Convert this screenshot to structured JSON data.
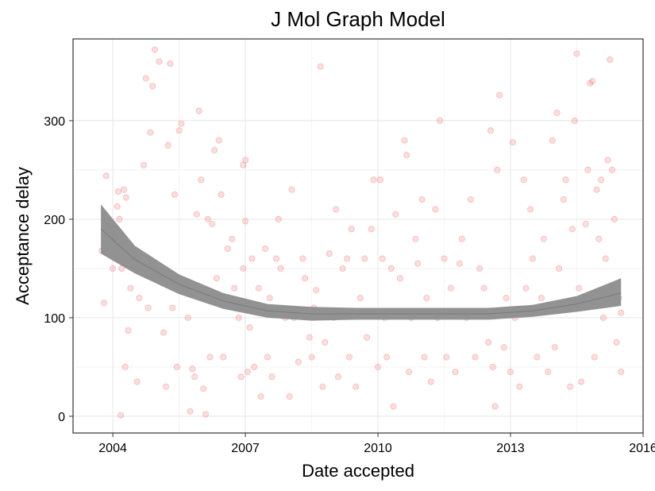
{
  "chart_data": {
    "type": "scatter",
    "title": "J Mol Graph Model",
    "xlabel": "Date accepted",
    "ylabel": "Acceptance delay",
    "xlim": [
      2003.1,
      2016.0
    ],
    "ylim": [
      -17,
      383
    ],
    "x_ticks": [
      2004,
      2007,
      2010,
      2013,
      2016
    ],
    "x_tick_labels": [
      "2004",
      "2007",
      "2010",
      "2013",
      "2016"
    ],
    "y_ticks": [
      0,
      100,
      200,
      300
    ],
    "y_tick_labels": [
      "0",
      "100",
      "200",
      "300"
    ],
    "grid": true,
    "legend": "none",
    "point_color": "#f08080",
    "point_fill_opacity": 0.25,
    "smooth_color": "#8c8c8c",
    "points": [
      [
        2003.75,
        168
      ],
      [
        2003.8,
        115
      ],
      [
        2003.85,
        244
      ],
      [
        2003.95,
        192
      ],
      [
        2004.0,
        150
      ],
      [
        2004.05,
        182
      ],
      [
        2004.1,
        213
      ],
      [
        2004.12,
        228
      ],
      [
        2004.15,
        200
      ],
      [
        2004.18,
        1
      ],
      [
        2004.2,
        150
      ],
      [
        2004.25,
        230
      ],
      [
        2004.28,
        50
      ],
      [
        2004.3,
        222
      ],
      [
        2004.35,
        87
      ],
      [
        2004.4,
        130
      ],
      [
        2004.45,
        170
      ],
      [
        2004.5,
        160
      ],
      [
        2004.55,
        35
      ],
      [
        2004.6,
        120
      ],
      [
        2004.7,
        255
      ],
      [
        2004.75,
        343
      ],
      [
        2004.8,
        110
      ],
      [
        2004.85,
        288
      ],
      [
        2004.9,
        335
      ],
      [
        2004.95,
        372
      ],
      [
        2005.0,
        145
      ],
      [
        2005.05,
        360
      ],
      [
        2005.1,
        140
      ],
      [
        2005.15,
        85
      ],
      [
        2005.2,
        30
      ],
      [
        2005.25,
        275
      ],
      [
        2005.3,
        358
      ],
      [
        2005.35,
        110
      ],
      [
        2005.4,
        225
      ],
      [
        2005.45,
        50
      ],
      [
        2005.5,
        290
      ],
      [
        2005.55,
        297
      ],
      [
        2005.6,
        130
      ],
      [
        2005.7,
        100
      ],
      [
        2005.75,
        5
      ],
      [
        2005.8,
        48
      ],
      [
        2005.85,
        40
      ],
      [
        2005.9,
        205
      ],
      [
        2005.95,
        310
      ],
      [
        2006.0,
        240
      ],
      [
        2006.05,
        28
      ],
      [
        2006.1,
        2
      ],
      [
        2006.15,
        200
      ],
      [
        2006.2,
        60
      ],
      [
        2006.25,
        195
      ],
      [
        2006.3,
        270
      ],
      [
        2006.35,
        140
      ],
      [
        2006.4,
        280
      ],
      [
        2006.45,
        225
      ],
      [
        2006.5,
        60
      ],
      [
        2006.6,
        170
      ],
      [
        2006.7,
        180
      ],
      [
        2006.75,
        130
      ],
      [
        2006.85,
        100
      ],
      [
        2006.9,
        40
      ],
      [
        2006.95,
        150
      ],
      [
        2007.0,
        198
      ],
      [
        2006.95,
        255
      ],
      [
        2007.0,
        260
      ],
      [
        2007.05,
        45
      ],
      [
        2007.1,
        90
      ],
      [
        2007.15,
        160
      ],
      [
        2007.2,
        50
      ],
      [
        2007.3,
        130
      ],
      [
        2007.35,
        20
      ],
      [
        2007.45,
        170
      ],
      [
        2007.5,
        60
      ],
      [
        2007.55,
        120
      ],
      [
        2007.6,
        40
      ],
      [
        2007.7,
        160
      ],
      [
        2007.75,
        200
      ],
      [
        2007.8,
        150
      ],
      [
        2007.9,
        100
      ],
      [
        2008.0,
        20
      ],
      [
        2008.05,
        230
      ],
      [
        2008.1,
        100
      ],
      [
        2008.2,
        55
      ],
      [
        2008.3,
        160
      ],
      [
        2008.35,
        140
      ],
      [
        2008.45,
        80
      ],
      [
        2008.5,
        60
      ],
      [
        2008.55,
        110
      ],
      [
        2008.6,
        128
      ],
      [
        2008.7,
        355
      ],
      [
        2008.75,
        30
      ],
      [
        2008.8,
        75
      ],
      [
        2008.9,
        165
      ],
      [
        2009.0,
        100
      ],
      [
        2009.05,
        210
      ],
      [
        2009.1,
        40
      ],
      [
        2009.2,
        150
      ],
      [
        2009.3,
        160
      ],
      [
        2009.35,
        60
      ],
      [
        2009.4,
        190
      ],
      [
        2009.5,
        30
      ],
      [
        2009.6,
        120
      ],
      [
        2009.7,
        160
      ],
      [
        2009.75,
        80
      ],
      [
        2009.85,
        190
      ],
      [
        2009.9,
        240
      ],
      [
        2010.0,
        50
      ],
      [
        2010.05,
        240
      ],
      [
        2010.1,
        160
      ],
      [
        2010.15,
        100
      ],
      [
        2010.2,
        60
      ],
      [
        2010.3,
        150
      ],
      [
        2010.35,
        10
      ],
      [
        2010.4,
        205
      ],
      [
        2010.5,
        140
      ],
      [
        2010.6,
        280
      ],
      [
        2010.65,
        265
      ],
      [
        2010.7,
        45
      ],
      [
        2010.75,
        100
      ],
      [
        2010.85,
        180
      ],
      [
        2010.9,
        155
      ],
      [
        2011.0,
        220
      ],
      [
        2011.05,
        60
      ],
      [
        2011.1,
        120
      ],
      [
        2011.2,
        35
      ],
      [
        2011.3,
        210
      ],
      [
        2011.35,
        100
      ],
      [
        2011.4,
        300
      ],
      [
        2011.5,
        160
      ],
      [
        2011.55,
        60
      ],
      [
        2011.65,
        130
      ],
      [
        2011.75,
        45
      ],
      [
        2011.85,
        155
      ],
      [
        2011.9,
        180
      ],
      [
        2012.0,
        100
      ],
      [
        2012.1,
        220
      ],
      [
        2012.2,
        60
      ],
      [
        2012.3,
        150
      ],
      [
        2012.4,
        130
      ],
      [
        2012.5,
        75
      ],
      [
        2012.55,
        290
      ],
      [
        2012.6,
        50
      ],
      [
        2012.65,
        10
      ],
      [
        2012.7,
        250
      ],
      [
        2012.75,
        326
      ],
      [
        2012.85,
        70
      ],
      [
        2012.9,
        120
      ],
      [
        2013.0,
        45
      ],
      [
        2013.05,
        278
      ],
      [
        2013.1,
        100
      ],
      [
        2013.2,
        30
      ],
      [
        2013.3,
        240
      ],
      [
        2013.35,
        130
      ],
      [
        2013.45,
        210
      ],
      [
        2013.5,
        160
      ],
      [
        2013.6,
        60
      ],
      [
        2013.7,
        120
      ],
      [
        2013.75,
        180
      ],
      [
        2013.85,
        45
      ],
      [
        2013.95,
        280
      ],
      [
        2014.0,
        70
      ],
      [
        2014.05,
        308
      ],
      [
        2014.1,
        150
      ],
      [
        2014.2,
        220
      ],
      [
        2014.25,
        240
      ],
      [
        2014.35,
        30
      ],
      [
        2014.4,
        190
      ],
      [
        2014.45,
        300
      ],
      [
        2014.5,
        368
      ],
      [
        2014.55,
        130
      ],
      [
        2014.6,
        35
      ],
      [
        2014.65,
        120
      ],
      [
        2014.7,
        195
      ],
      [
        2014.75,
        250
      ],
      [
        2014.8,
        338
      ],
      [
        2014.85,
        340
      ],
      [
        2014.9,
        60
      ],
      [
        2014.95,
        230
      ],
      [
        2015.0,
        180
      ],
      [
        2015.05,
        240
      ],
      [
        2015.1,
        100
      ],
      [
        2015.15,
        160
      ],
      [
        2015.2,
        260
      ],
      [
        2015.25,
        362
      ],
      [
        2015.3,
        250
      ],
      [
        2015.35,
        200
      ],
      [
        2015.4,
        75
      ],
      [
        2015.45,
        120
      ],
      [
        2015.5,
        45
      ],
      [
        2015.5,
        105
      ]
    ],
    "smooth": {
      "x": [
        2003.73,
        2004.5,
        2005.5,
        2006.5,
        2007.5,
        2008.5,
        2009.5,
        2010.5,
        2011.5,
        2012.5,
        2013.5,
        2014.5,
        2015.5
      ],
      "y": [
        190,
        159,
        134,
        117,
        107,
        104,
        104,
        104,
        104,
        104,
        107,
        114,
        125
      ],
      "lower": [
        165,
        145,
        124,
        109,
        100,
        97,
        98,
        98,
        98,
        98,
        101,
        106,
        112
      ],
      "upper": [
        215,
        173,
        144,
        125,
        114,
        111,
        110,
        110,
        110,
        110,
        113,
        122,
        140
      ]
    }
  }
}
